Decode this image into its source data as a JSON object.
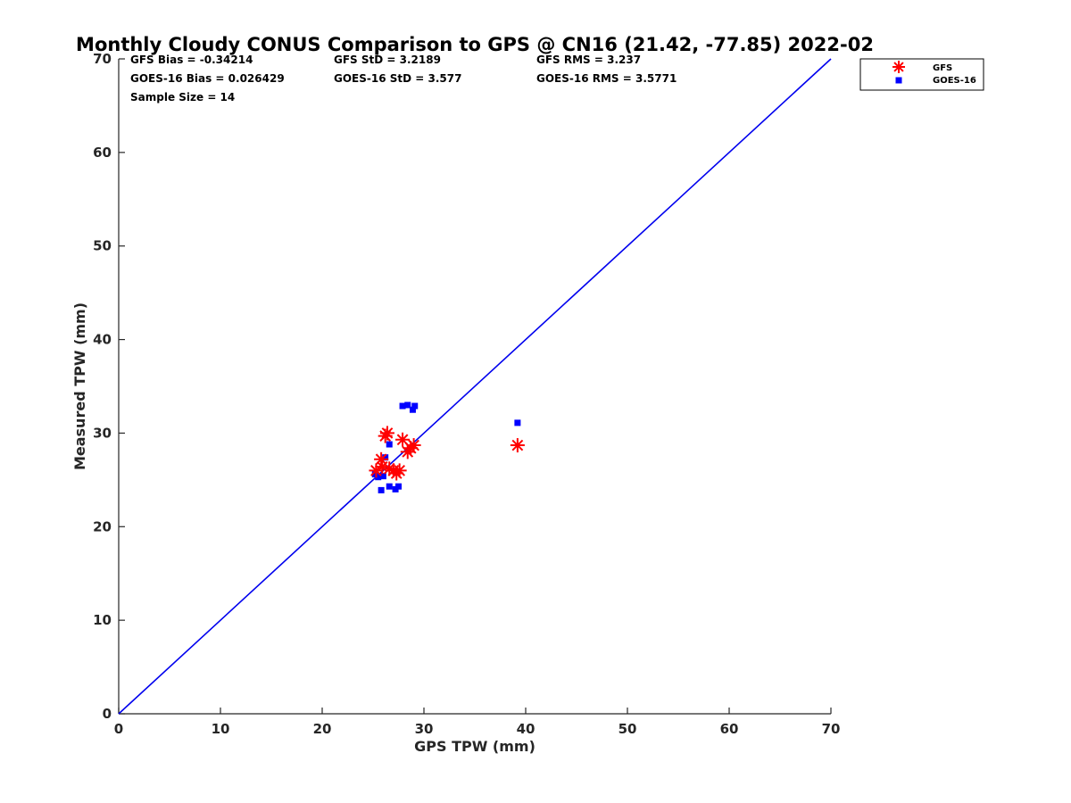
{
  "chart_data": {
    "type": "scatter",
    "title": "Monthly Cloudy CONUS Comparison to GPS @ CN16 (21.42, -77.85) 2022-02",
    "xlabel": "GPS TPW (mm)",
    "ylabel": "Measured TPW (mm)",
    "xlim": [
      0,
      70
    ],
    "ylim": [
      0,
      70
    ],
    "xticks": [
      0,
      10,
      20,
      30,
      40,
      50,
      60,
      70
    ],
    "yticks": [
      0,
      10,
      20,
      30,
      40,
      50,
      60,
      70
    ],
    "grid": false,
    "legend_position": "outside top-right",
    "reference_line": {
      "x": [
        0,
        70
      ],
      "y": [
        0,
        70
      ],
      "color": "#0000ee"
    },
    "stats": {
      "gfs_bias": "GFS Bias = -0.34214",
      "gfs_std": "GFS StD = 3.2189",
      "gfs_rms": "GFS RMS = 3.237",
      "goes_bias": "GOES-16 Bias = 0.026429",
      "goes_std": "GOES-16 StD = 3.577",
      "goes_rms": "GOES-16 RMS = 3.5771",
      "sample_size": "Sample Size = 14"
    },
    "series": [
      {
        "name": "GFS",
        "marker": "asterisk",
        "color": "#ff0000",
        "x": [
          25.3,
          25.8,
          25.9,
          26.2,
          26.4,
          26.6,
          27.0,
          27.3,
          27.6,
          27.9,
          28.4,
          28.7,
          29.0,
          39.2
        ],
        "y": [
          26.0,
          27.2,
          26.4,
          29.7,
          30.0,
          26.2,
          26.0,
          25.7,
          26.0,
          29.3,
          28.0,
          28.4,
          28.7,
          28.7
        ]
      },
      {
        "name": "GOES-16",
        "marker": "square",
        "color": "#0000ff",
        "x": [
          25.2,
          25.5,
          25.8,
          26.0,
          26.2,
          26.6,
          26.6,
          27.2,
          27.5,
          27.9,
          28.4,
          28.9,
          29.1,
          39.2
        ],
        "y": [
          25.6,
          25.3,
          23.9,
          25.4,
          27.4,
          28.8,
          24.3,
          24.0,
          24.3,
          32.9,
          33.0,
          32.5,
          32.9,
          31.1
        ]
      }
    ]
  }
}
